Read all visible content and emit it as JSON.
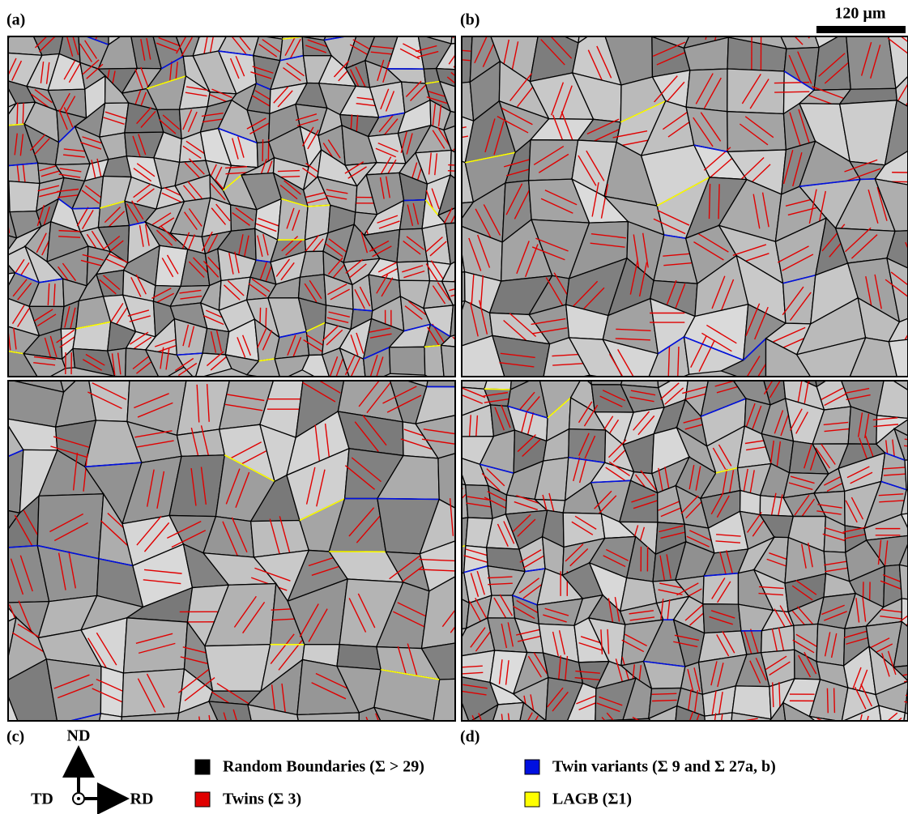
{
  "panels": [
    {
      "label": "(a)"
    },
    {
      "label": "(b)"
    },
    {
      "label": "(c)"
    },
    {
      "label": "(d)"
    }
  ],
  "scale_bar": "120 µm",
  "axes": {
    "up": "ND",
    "left": "TD",
    "right": "RD"
  },
  "legend": [
    {
      "name": "Random Boundaries (Σ > 29)",
      "color": "#000000"
    },
    {
      "name": "Twins (Σ 3)",
      "color": "#e00000"
    },
    {
      "name": "Twin variants (Σ 9 and Σ 27a, b)",
      "color": "#0010e0"
    },
    {
      "name": "LAGB (Σ1)",
      "color": "#ffff00"
    }
  ]
}
